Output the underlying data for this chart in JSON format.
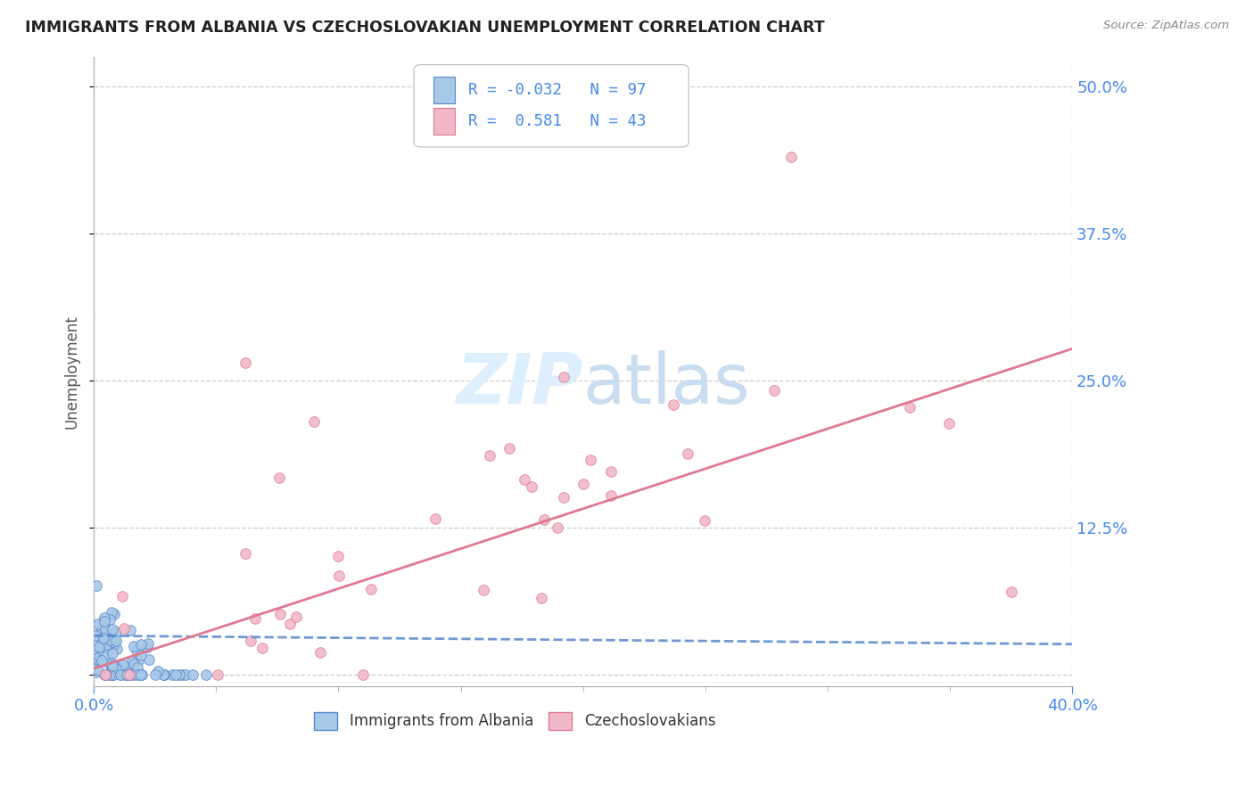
{
  "title": "IMMIGRANTS FROM ALBANIA VS CZECHOSLOVAKIAN UNEMPLOYMENT CORRELATION CHART",
  "source": "Source: ZipAtlas.com",
  "ylabel": "Unemployment",
  "xmin": 0.0,
  "xmax": 0.4,
  "ymin": -0.01,
  "ymax": 0.525,
  "yticks": [
    0.0,
    0.125,
    0.25,
    0.375,
    0.5
  ],
  "xticks_major": [
    0.0,
    0.4
  ],
  "xticks_minor": [
    0.05,
    0.1,
    0.15,
    0.2,
    0.25,
    0.3,
    0.35
  ],
  "albania_color": "#a8c8e8",
  "albania_edge": "#5588cc",
  "czech_color": "#f0b8c8",
  "czech_edge": "#e07890",
  "trend_albania_color": "#5588cc",
  "trend_czech_color": "#e07890",
  "background_color": "#ffffff",
  "grid_color": "#cccccc",
  "axis_label_color": "#4488ee",
  "title_color": "#222222",
  "watermark_color": "#ddeeff",
  "albania_R": -0.032,
  "czech_R": 0.581,
  "albania_N": 97,
  "czech_N": 43,
  "trend_alb_slope": -0.018,
  "trend_alb_intercept": 0.033,
  "trend_cz_slope": 0.68,
  "trend_cz_intercept": 0.005
}
